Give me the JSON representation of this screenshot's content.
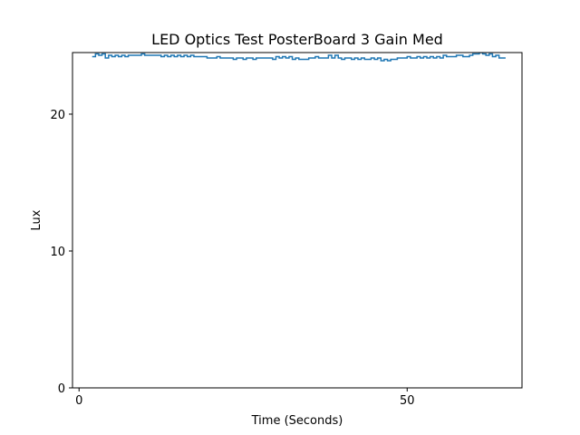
{
  "chart_data": {
    "type": "line",
    "title": "LED Optics Test PosterBoard 3 Gain Med",
    "xlabel": "Time (Seconds)",
    "ylabel": "Lux",
    "xlim": [
      -1,
      67.5
    ],
    "ylim": [
      0,
      24.5
    ],
    "xticks": [
      0,
      50
    ],
    "yticks": [
      0,
      10,
      20
    ],
    "grid": false,
    "legend": "none",
    "colors": {
      "series": "#1f77b4",
      "axes": "#000000",
      "background": "#ffffff"
    },
    "series": [
      {
        "x": [
          2,
          2.5,
          3,
          3.5,
          4,
          4.5,
          5,
          5.5,
          6,
          6.5,
          7,
          7.5,
          8,
          8.5,
          9,
          9.5,
          10,
          10.5,
          11,
          11.5,
          12,
          12.5,
          13,
          13.5,
          14,
          14.5,
          15,
          15.5,
          16,
          16.5,
          17,
          17.5,
          18,
          18.5,
          19,
          19.5,
          20,
          20.5,
          21,
          21.5,
          22,
          22.5,
          23,
          23.5,
          24,
          24.5,
          25,
          25.5,
          26,
          26.5,
          27,
          27.5,
          28,
          28.5,
          29,
          29.5,
          30,
          30.5,
          31,
          31.5,
          32,
          32.5,
          33,
          33.5,
          34,
          34.5,
          35,
          35.5,
          36,
          36.5,
          37,
          37.5,
          38,
          38.5,
          39,
          39.5,
          40,
          40.5,
          41,
          41.5,
          42,
          42.5,
          43,
          43.5,
          44,
          44.5,
          45,
          45.5,
          46,
          46.5,
          47,
          47.5,
          48,
          48.5,
          49,
          49.5,
          50,
          50.5,
          51,
          51.5,
          52,
          52.5,
          53,
          53.5,
          54,
          54.5,
          55,
          55.5,
          56,
          56.5,
          57,
          57.5,
          58,
          58.5,
          59,
          59.5,
          60,
          60.5,
          61,
          61.5,
          62,
          62.5,
          63,
          63.5,
          64,
          64.5,
          65
        ],
        "y": [
          24.2,
          24.4,
          24.3,
          24.4,
          24.1,
          24.3,
          24.2,
          24.3,
          24.2,
          24.3,
          24.2,
          24.3,
          24.3,
          24.3,
          24.3,
          24.4,
          24.3,
          24.3,
          24.3,
          24.3,
          24.3,
          24.2,
          24.3,
          24.2,
          24.3,
          24.2,
          24.3,
          24.2,
          24.3,
          24.2,
          24.3,
          24.2,
          24.2,
          24.2,
          24.2,
          24.1,
          24.1,
          24.1,
          24.2,
          24.1,
          24.1,
          24.1,
          24.1,
          24.0,
          24.1,
          24.1,
          24.0,
          24.1,
          24.1,
          24.0,
          24.1,
          24.1,
          24.1,
          24.1,
          24.1,
          24.0,
          24.2,
          24.1,
          24.2,
          24.1,
          24.2,
          24.0,
          24.1,
          24.0,
          24.0,
          24.0,
          24.1,
          24.1,
          24.2,
          24.1,
          24.1,
          24.1,
          24.3,
          24.1,
          24.3,
          24.1,
          24.0,
          24.1,
          24.1,
          24.0,
          24.1,
          24.0,
          24.1,
          24.0,
          24.0,
          24.1,
          24.0,
          24.1,
          23.9,
          24.0,
          23.9,
          24.0,
          24.0,
          24.1,
          24.1,
          24.1,
          24.2,
          24.1,
          24.1,
          24.2,
          24.1,
          24.2,
          24.1,
          24.2,
          24.1,
          24.2,
          24.1,
          24.3,
          24.2,
          24.2,
          24.2,
          24.3,
          24.3,
          24.2,
          24.2,
          24.3,
          24.4,
          24.4,
          24.5,
          24.4,
          24.3,
          24.4,
          24.2,
          24.3,
          24.1,
          24.1,
          24.1
        ]
      }
    ]
  }
}
